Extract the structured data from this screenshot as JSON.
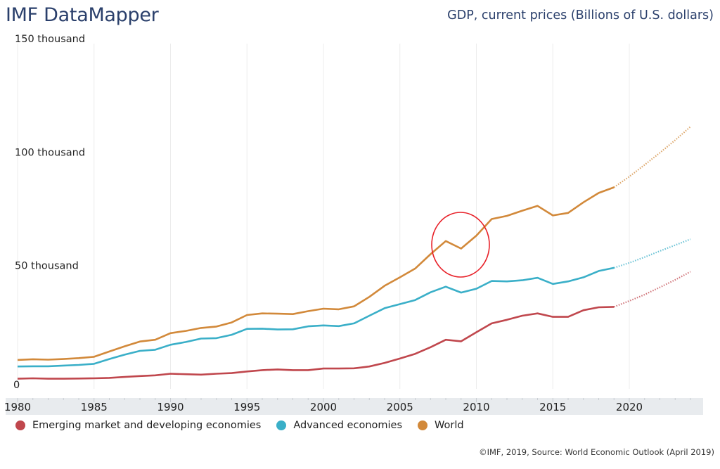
{
  "header": {
    "brand": "IMF DataMapper",
    "indicator_title": "GDP, current prices (Billions of U.S. dollars)"
  },
  "footer": {
    "credit": "©IMF, 2019, Source: World Economic Outlook (April 2019)"
  },
  "annotation": {
    "type": "circle",
    "color": "#e8222a",
    "around_year": 2009,
    "series": "World"
  },
  "chart_data": {
    "type": "line",
    "title": "GDP, current prices (Billions of U.S. dollars)",
    "xlabel": "",
    "ylabel": "",
    "xlim": [
      1980,
      2024
    ],
    "ylim": [
      0,
      150000
    ],
    "y_ticks": [
      0,
      50000,
      100000,
      150000
    ],
    "y_tick_labels": [
      "0",
      "50 thousand",
      "100 thousand",
      "150 thousand"
    ],
    "x_ticks": [
      1980,
      1985,
      1990,
      1995,
      2000,
      2005,
      2010,
      2015,
      2020
    ],
    "x_tick_labels": [
      "1980",
      "1985",
      "1990",
      "1995",
      "2000",
      "2005",
      "2010",
      "2015",
      "2020"
    ],
    "grid": "vertical",
    "legend_position": "bottom-left",
    "last_actual_year": 2019,
    "forecast_style": "dotted",
    "x": [
      1980,
      1981,
      1982,
      1983,
      1984,
      1985,
      1986,
      1987,
      1988,
      1989,
      1990,
      1991,
      1992,
      1993,
      1994,
      1995,
      1996,
      1997,
      1998,
      1999,
      2000,
      2001,
      2002,
      2003,
      2004,
      2005,
      2006,
      2007,
      2008,
      2009,
      2010,
      2011,
      2012,
      2013,
      2014,
      2015,
      2016,
      2017,
      2018,
      2019,
      2020,
      2021,
      2022,
      2023,
      2024
    ],
    "series": [
      {
        "name": "Emerging market and developing economies",
        "color": "#c0474d",
        "values": [
          2900,
          3100,
          2900,
          2900,
          3000,
          3100,
          3300,
          3700,
          4100,
          4400,
          5100,
          4900,
          4700,
          5100,
          5400,
          6100,
          6700,
          7000,
          6700,
          6700,
          7400,
          7400,
          7500,
          8300,
          9900,
          11800,
          13900,
          16800,
          20100,
          19400,
          23400,
          27300,
          28900,
          30700,
          31700,
          30200,
          30200,
          33100,
          34400,
          34600,
          37200,
          40000,
          43200,
          46500,
          50100
        ]
      },
      {
        "name": "Advanced economies",
        "color": "#3aafc8",
        "values": [
          8300,
          8400,
          8400,
          8700,
          9000,
          9500,
          11600,
          13500,
          15200,
          15700,
          17900,
          19100,
          20600,
          20800,
          22300,
          24900,
          25000,
          24600,
          24700,
          26000,
          26400,
          26100,
          27300,
          30700,
          34000,
          35800,
          37600,
          41000,
          43500,
          40900,
          42600,
          46000,
          45800,
          46300,
          47400,
          44700,
          45800,
          47600,
          50400,
          51800,
          54000,
          56500,
          59200,
          61800,
          64400
        ]
      },
      {
        "name": "World",
        "color": "#d2893a",
        "values": [
          11200,
          11500,
          11300,
          11600,
          12000,
          12600,
          14900,
          17200,
          19300,
          20100,
          23000,
          24000,
          25300,
          25900,
          27700,
          31000,
          31700,
          31600,
          31400,
          32700,
          33800,
          33500,
          34800,
          39000,
          43900,
          47600,
          51500,
          57800,
          63600,
          60300,
          66000,
          73300,
          74700,
          77000,
          79100,
          74900,
          76000,
          80700,
          84800,
          87300,
          92000,
          97200,
          102500,
          108100,
          114000
        ]
      }
    ]
  }
}
